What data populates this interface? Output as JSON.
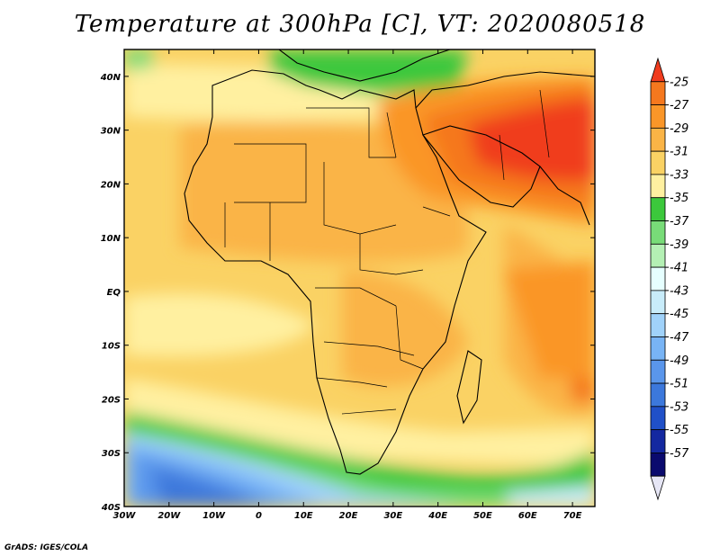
{
  "title": "Temperature at 300hPa [C], VT: 2020080518",
  "footer": "GrADS: IGES/COLA",
  "map": {
    "region": "Africa and Middle East",
    "variable": "Temperature at 300hPa",
    "units": "C",
    "valid_time": "2020080518",
    "lon_range": [
      -30,
      75
    ],
    "lat_range": [
      -40,
      45
    ],
    "x_ticks": [
      "30W",
      "20W",
      "10W",
      "0",
      "10E",
      "20E",
      "30E",
      "40E",
      "50E",
      "60E",
      "70E"
    ],
    "x_tick_values": [
      -30,
      -20,
      -10,
      0,
      10,
      20,
      30,
      40,
      50,
      60,
      70
    ],
    "y_ticks": [
      "40N",
      "30N",
      "20N",
      "10N",
      "EQ",
      "10S",
      "20S",
      "30S",
      "40S"
    ],
    "y_tick_values": [
      40,
      30,
      20,
      10,
      0,
      -10,
      -20,
      -30,
      -40
    ]
  },
  "colorbar": {
    "labels": [
      "-25",
      "-27",
      "-29",
      "-31",
      "-33",
      "-35",
      "-37",
      "-39",
      "-41",
      "-43",
      "-45",
      "-47",
      "-49",
      "-51",
      "-53",
      "-55",
      "-57"
    ],
    "colors": [
      "#f03c1e",
      "#f5781e",
      "#fa9628",
      "#fab446",
      "#fad264",
      "#fff0a0",
      "#3cc83c",
      "#78dc78",
      "#b4f0b4",
      "#e6ffff",
      "#c8ecfa",
      "#a0d2fa",
      "#78b4f5",
      "#5a96eb",
      "#3c78dc",
      "#2050c8",
      "#1428a0",
      "#0a0a6e",
      "#e6e6f5"
    ]
  }
}
